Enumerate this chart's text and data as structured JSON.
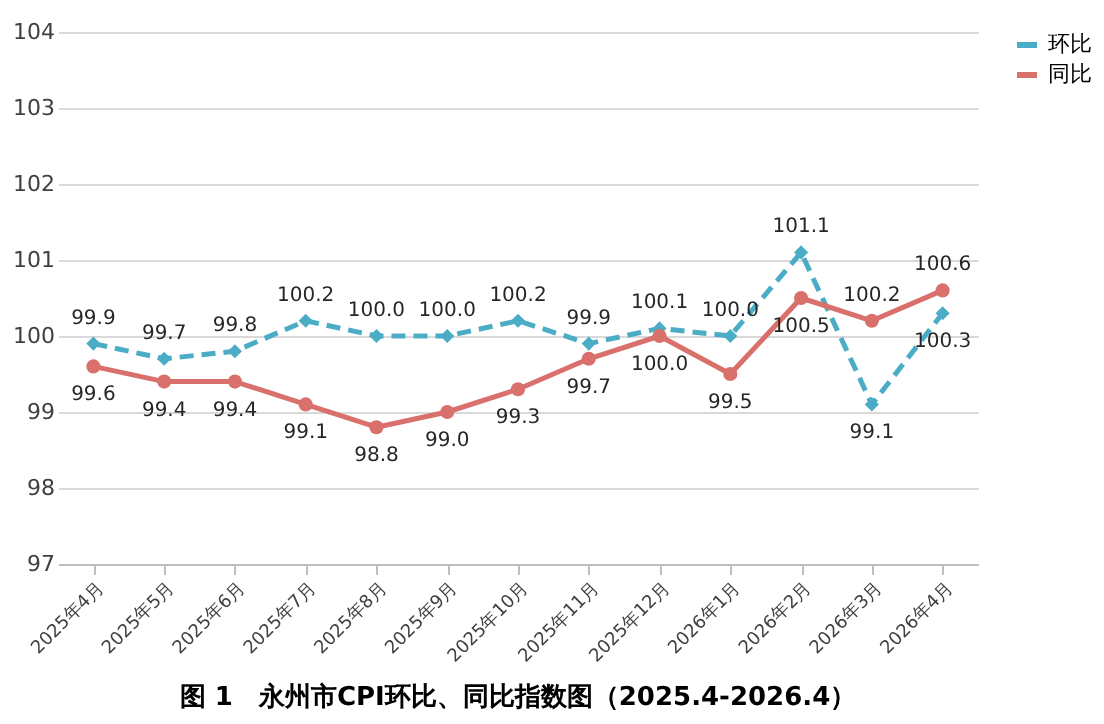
{
  "chart_data": {
    "type": "line",
    "title": "图 1　永州市CPI环比、同比指数图（2025.4-2026.4）",
    "categories": [
      "2025年4月",
      "2025年5月",
      "2025年6月",
      "2025年7月",
      "2025年8月",
      "2025年9月",
      "2025年10月",
      "2025年11月",
      "2025年12月",
      "2026年1月",
      "2026年2月",
      "2026年3月",
      "2026年4月"
    ],
    "series": [
      {
        "name": "环比",
        "color": "#4bacc6",
        "marker": "diamond",
        "line_style": "dashed",
        "values": [
          99.9,
          99.7,
          99.8,
          100.2,
          100.0,
          100.0,
          100.2,
          99.9,
          100.1,
          100.0,
          101.1,
          99.1,
          100.3
        ],
        "value_labels": [
          "99.9",
          "99.7",
          "99.8",
          "100.2",
          "100.0",
          "100.0",
          "100.2",
          "99.9",
          "100.1",
          "100.0",
          "101.1",
          "99.1",
          "100.3"
        ]
      },
      {
        "name": "同比",
        "color": "#d9706c",
        "marker": "circle",
        "line_style": "solid",
        "values": [
          99.6,
          99.4,
          99.4,
          99.1,
          98.8,
          99.0,
          99.3,
          99.7,
          100.0,
          99.5,
          100.5,
          100.2,
          100.6
        ],
        "value_labels": [
          "99.6",
          "99.4",
          "99.4",
          "99.1",
          "98.8",
          "99.0",
          "99.3",
          "99.7",
          "100.0",
          "99.5",
          "100.5",
          "100.2",
          "100.6"
        ]
      }
    ],
    "ylim": [
      97,
      104
    ],
    "yticks": [
      97,
      98,
      99,
      100,
      101,
      102,
      103,
      104
    ],
    "grid": "y",
    "legend": "right"
  }
}
